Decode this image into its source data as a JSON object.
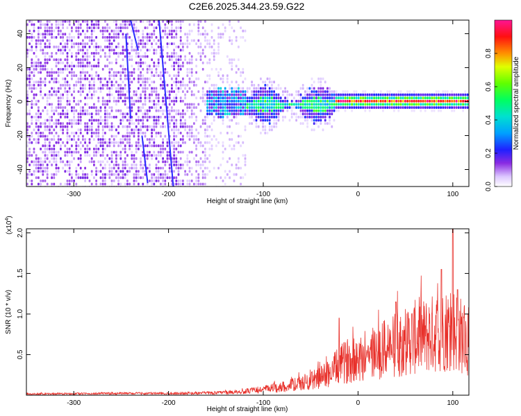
{
  "page": {
    "title": "C2E6.2025.344.23.59.G22"
  },
  "chart_data": [
    {
      "type": "heatmap",
      "xlabel": "Height of straight line (km)",
      "ylabel": "Frequency (Hz)",
      "xlim": [
        -350,
        117
      ],
      "ylim": [
        -50,
        48
      ],
      "x_ticks": [
        -300,
        -200,
        -100,
        0,
        100
      ],
      "y_ticks": [
        -40,
        -20,
        0,
        20,
        40
      ],
      "colorbar": {
        "label": "Normalized spectral amplitude",
        "range": [
          0,
          1
        ],
        "ticks": [
          0.0,
          0.2,
          0.4,
          0.6,
          0.8
        ],
        "tick_labels": [
          "0.0",
          "0.2",
          "0.4",
          "0.6",
          "0.8"
        ],
        "colors": [
          "#ffffff",
          "#e0c8ff",
          "#8a2be2",
          "#2020ff",
          "#00c8ff",
          "#00ff80",
          "#40ff00",
          "#ffff00",
          "#ff8000",
          "#ff0000",
          "#ff1493"
        ]
      },
      "description_values": {
        "noise_region_x": [
          -350,
          -120
        ],
        "signal_band_center_hz": 0,
        "signal_region_x": [
          -160,
          117
        ]
      }
    },
    {
      "type": "line",
      "xlabel": "Height of straight line (km)",
      "ylabel": "SNR (10 * v/v)",
      "y_multiplier_label": "(x10",
      "y_multiplier_exp": "4",
      "y_multiplier_close": ")",
      "xlim": [
        -350,
        117
      ],
      "ylim": [
        0,
        2.05
      ],
      "x_ticks": [
        -300,
        -200,
        -100,
        0,
        100
      ],
      "y_ticks": [
        0.5,
        1.0,
        1.5,
        2.0
      ],
      "y_tick_labels": [
        "0.5",
        "1.0",
        "1.5",
        "2.0"
      ],
      "series": [
        {
          "color": "#e8302a",
          "envelope": [
            [
              -350,
              0.02
            ],
            [
              -300,
              0.025
            ],
            [
              -250,
              0.03
            ],
            [
              -200,
              0.03
            ],
            [
              -150,
              0.04
            ],
            [
              -120,
              0.06
            ],
            [
              -100,
              0.1
            ],
            [
              -80,
              0.14
            ],
            [
              -60,
              0.2
            ],
            [
              -40,
              0.3
            ],
            [
              -30,
              0.38
            ],
            [
              -20,
              0.5
            ],
            [
              -10,
              0.6
            ],
            [
              0,
              0.62
            ],
            [
              10,
              0.66
            ],
            [
              20,
              0.72
            ],
            [
              30,
              0.8
            ],
            [
              40,
              0.85
            ],
            [
              50,
              0.92
            ],
            [
              60,
              0.98
            ],
            [
              70,
              1.0
            ],
            [
              80,
              1.05
            ],
            [
              90,
              1.1
            ],
            [
              100,
              1.15
            ],
            [
              110,
              1.0
            ],
            [
              117,
              0.9
            ]
          ],
          "peaks": [
            [
              -20,
              0.95
            ],
            [
              40,
              1.15
            ],
            [
              88,
              1.55
            ],
            [
              100,
              2.05
            ],
            [
              105,
              1.3
            ]
          ]
        }
      ]
    }
  ]
}
